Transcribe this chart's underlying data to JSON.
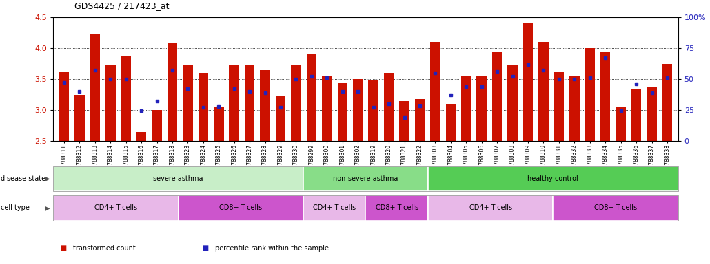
{
  "title": "GDS4425 / 217423_at",
  "samples": [
    "GSM788311",
    "GSM788312",
    "GSM788313",
    "GSM788314",
    "GSM788315",
    "GSM788316",
    "GSM788317",
    "GSM788318",
    "GSM788323",
    "GSM788324",
    "GSM788325",
    "GSM788326",
    "GSM788327",
    "GSM788328",
    "GSM788329",
    "GSM788330",
    "GSM788299",
    "GSM788300",
    "GSM788301",
    "GSM788302",
    "GSM788319",
    "GSM788320",
    "GSM788321",
    "GSM788322",
    "GSM788303",
    "GSM788304",
    "GSM788305",
    "GSM788306",
    "GSM788307",
    "GSM788308",
    "GSM788309",
    "GSM788310",
    "GSM788331",
    "GSM788332",
    "GSM788333",
    "GSM788334",
    "GSM788335",
    "GSM788336",
    "GSM788337",
    "GSM788338"
  ],
  "red_values": [
    3.62,
    3.25,
    4.22,
    3.73,
    3.87,
    2.65,
    3.0,
    4.08,
    3.73,
    3.6,
    3.06,
    3.72,
    3.72,
    3.65,
    3.22,
    3.74,
    3.9,
    3.55,
    3.45,
    3.5,
    3.48,
    3.6,
    3.15,
    3.18,
    4.1,
    3.1,
    3.55,
    3.56,
    3.95,
    3.72,
    4.4,
    4.1,
    3.62,
    3.55,
    4.0,
    3.95,
    3.05,
    3.35,
    3.38,
    3.75
  ],
  "blue_values": [
    3.45,
    3.3,
    3.65,
    3.5,
    3.5,
    2.99,
    3.15,
    3.65,
    3.35,
    3.05,
    3.06,
    3.35,
    3.3,
    3.28,
    3.05,
    3.5,
    3.55,
    3.52,
    3.3,
    3.3,
    3.05,
    3.1,
    2.88,
    3.07,
    3.6,
    3.25,
    3.38,
    3.38,
    3.62,
    3.55,
    3.73,
    3.65,
    3.5,
    3.5,
    3.52,
    3.85,
    2.99,
    3.42,
    3.28,
    3.52
  ],
  "ylim_left": [
    2.5,
    4.5
  ],
  "ylim_right": [
    0,
    100
  ],
  "yticks_left": [
    2.5,
    3.0,
    3.5,
    4.0,
    4.5
  ],
  "yticks_right": [
    0,
    25,
    50,
    75,
    100
  ],
  "ytick_right_labels": [
    "0",
    "25",
    "50",
    "75",
    "100%"
  ],
  "bar_color": "#cc1100",
  "dot_color": "#2222bb",
  "bar_bottom": 2.5,
  "disease_groups": [
    {
      "label": "severe asthma",
      "start": 0,
      "end": 16,
      "color": "#c8eec8"
    },
    {
      "label": "non-severe asthma",
      "start": 16,
      "end": 24,
      "color": "#88dd88"
    },
    {
      "label": "healthy control",
      "start": 24,
      "end": 40,
      "color": "#55cc55"
    }
  ],
  "cell_groups": [
    {
      "label": "CD4+ T-cells",
      "start": 0,
      "end": 8,
      "color": "#e8b8e8"
    },
    {
      "label": "CD8+ T-cells",
      "start": 8,
      "end": 16,
      "color": "#cc55cc"
    },
    {
      "label": "CD4+ T-cells",
      "start": 16,
      "end": 20,
      "color": "#e8b8e8"
    },
    {
      "label": "CD8+ T-cells",
      "start": 20,
      "end": 24,
      "color": "#cc55cc"
    },
    {
      "label": "CD4+ T-cells",
      "start": 24,
      "end": 32,
      "color": "#e8b8e8"
    },
    {
      "label": "CD8+ T-cells",
      "start": 32,
      "end": 40,
      "color": "#cc55cc"
    }
  ],
  "legend_items": [
    {
      "label": "transformed count",
      "color": "#cc1100"
    },
    {
      "label": "percentile rank within the sample",
      "color": "#2222bb"
    }
  ],
  "disease_label": "disease state",
  "cell_label": "cell type"
}
